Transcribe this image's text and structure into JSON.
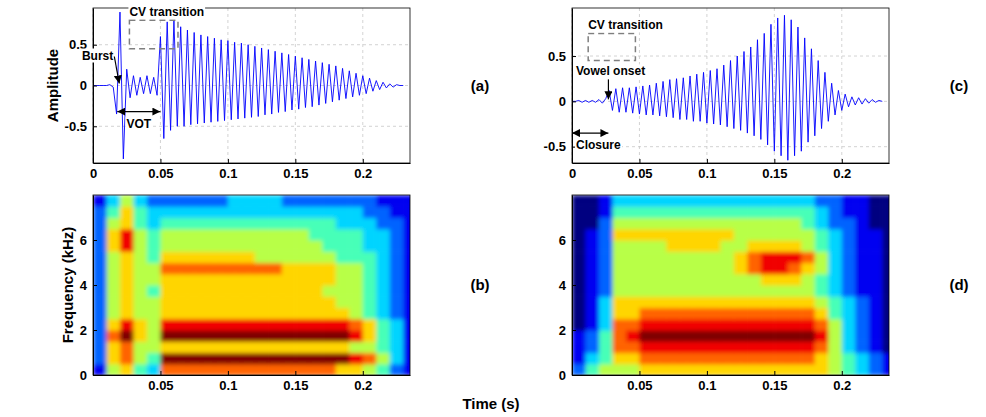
{
  "chart_data": [
    {
      "type": "line",
      "panel_label": "(a)",
      "ylabel": "Amplitude",
      "color": "#0000ff",
      "grid": true,
      "xlim": [
        0,
        0.235
      ],
      "ylim": [
        -0.95,
        0.95
      ],
      "xticks": [
        0,
        0.05,
        0.1,
        0.15,
        0.2
      ],
      "yticks": [
        -0.5,
        0,
        0.5
      ],
      "x": [
        0,
        0.0025,
        0.005,
        0.0075,
        0.01,
        0.0125,
        0.015,
        0.0175,
        0.02,
        0.0225,
        0.025,
        0.0275,
        0.03,
        0.0325,
        0.035,
        0.0375,
        0.04,
        0.0425,
        0.045,
        0.0475,
        0.05,
        0.0525,
        0.055,
        0.0575,
        0.06,
        0.0625,
        0.065,
        0.0675,
        0.07,
        0.0725,
        0.075,
        0.0775,
        0.08,
        0.0825,
        0.085,
        0.0875,
        0.09,
        0.0925,
        0.095,
        0.0975,
        0.1,
        0.1025,
        0.105,
        0.1075,
        0.11,
        0.1125,
        0.115,
        0.1175,
        0.12,
        0.1225,
        0.125,
        0.1275,
        0.13,
        0.1325,
        0.135,
        0.1375,
        0.14,
        0.1425,
        0.145,
        0.1475,
        0.15,
        0.1525,
        0.155,
        0.1575,
        0.16,
        0.1625,
        0.165,
        0.1675,
        0.17,
        0.1725,
        0.175,
        0.1775,
        0.18,
        0.1825,
        0.185,
        0.1875,
        0.19,
        0.1925,
        0.195,
        0.1975,
        0.2,
        0.2025,
        0.205,
        0.2075,
        0.21,
        0.2125,
        0.215,
        0.2175,
        0.22,
        0.2225,
        0.225,
        0.2275,
        0.23
      ],
      "values": [
        0,
        0,
        0,
        0,
        0,
        0.01,
        -0.02,
        -0.35,
        0.9,
        -0.9,
        0.2,
        -0.15,
        0.12,
        -0.12,
        0.1,
        -0.1,
        0.12,
        -0.1,
        0.1,
        -0.12,
        0.6,
        -0.65,
        0.78,
        -0.55,
        0.8,
        -0.5,
        0.72,
        -0.5,
        0.68,
        -0.48,
        0.65,
        -0.47,
        0.62,
        -0.46,
        0.6,
        -0.45,
        0.58,
        -0.44,
        0.56,
        -0.43,
        0.55,
        -0.42,
        0.53,
        -0.41,
        0.52,
        -0.4,
        0.5,
        -0.39,
        0.48,
        -0.38,
        0.46,
        -0.36,
        0.44,
        -0.35,
        0.42,
        -0.33,
        0.4,
        -0.32,
        0.38,
        -0.3,
        0.36,
        -0.29,
        0.34,
        -0.27,
        0.32,
        -0.26,
        0.3,
        -0.24,
        0.28,
        -0.22,
        0.26,
        -0.2,
        0.24,
        -0.18,
        0.21,
        -0.16,
        0.18,
        -0.14,
        0.15,
        -0.12,
        0.12,
        -0.1,
        0.09,
        -0.07,
        0.06,
        -0.05,
        0.04,
        -0.03,
        0.02,
        -0.02,
        0.01,
        0,
        0
      ],
      "annotations": [
        {
          "text": "Burst",
          "x": 0.0195,
          "y": 0
        },
        {
          "text": "CV transition",
          "x": [
            0.027,
            0.063
          ],
          "y": [
            0.45,
            0.8
          ]
        },
        {
          "text": "VOT",
          "x": [
            0.018,
            0.05
          ],
          "y": -0.32
        }
      ]
    },
    {
      "type": "heatmap",
      "panel_label": "(b)",
      "ylabel": "Frequency (kHz)",
      "xlim": [
        0,
        0.235
      ],
      "ylim": [
        0,
        8
      ],
      "xticks": [
        0.05,
        0.1,
        0.15,
        0.2
      ],
      "yticks": [
        0,
        2,
        4,
        6
      ],
      "zlim": [
        0,
        9
      ],
      "x_edges": [
        0,
        0.01,
        0.02,
        0.03,
        0.04,
        0.05,
        0.06,
        0.07,
        0.08,
        0.09,
        0.1,
        0.11,
        0.12,
        0.13,
        0.14,
        0.15,
        0.16,
        0.17,
        0.18,
        0.19,
        0.2,
        0.21,
        0.22,
        0.23,
        0.24
      ],
      "y_edges": [
        0,
        0.5,
        1,
        1.5,
        2,
        2.5,
        3,
        3.5,
        4,
        4.5,
        5,
        5.5,
        6,
        6.5,
        7,
        7.5,
        8
      ],
      "cells": [
        [
          1,
          5,
          6,
          4,
          3,
          7,
          7,
          7,
          7,
          7,
          7,
          7,
          7,
          7,
          7,
          7,
          7,
          7,
          6,
          6,
          5,
          4,
          2,
          1
        ],
        [
          2,
          6,
          7,
          5,
          4,
          9,
          9,
          9,
          9,
          9,
          9,
          9,
          9,
          9,
          9,
          9,
          9,
          9,
          9,
          8,
          7,
          5,
          3,
          1
        ],
        [
          2,
          6,
          7,
          5,
          5,
          6,
          6,
          6,
          6,
          6,
          6,
          6,
          6,
          6,
          6,
          6,
          6,
          6,
          6,
          5,
          5,
          4,
          3,
          1
        ],
        [
          2,
          7,
          9,
          6,
          5,
          9,
          9,
          9,
          9,
          9,
          9,
          9,
          9,
          9,
          9,
          9,
          9,
          9,
          9,
          8,
          6,
          4,
          3,
          1
        ],
        [
          2,
          6,
          8,
          6,
          5,
          8,
          8,
          8,
          8,
          8,
          8,
          8,
          8,
          8,
          8,
          8,
          8,
          8,
          8,
          7,
          6,
          4,
          3,
          1
        ],
        [
          2,
          5,
          6,
          5,
          5,
          6,
          6,
          6,
          6,
          6,
          6,
          6,
          6,
          6,
          6,
          6,
          6,
          6,
          6,
          5,
          4,
          3,
          2,
          1
        ],
        [
          2,
          5,
          6,
          5,
          5,
          6,
          6,
          6,
          6,
          6,
          6,
          6,
          6,
          6,
          6,
          6,
          6,
          6,
          5,
          5,
          4,
          3,
          2,
          1
        ],
        [
          2,
          5,
          6,
          5,
          4,
          6,
          6,
          6,
          6,
          6,
          6,
          6,
          6,
          6,
          6,
          6,
          6,
          5,
          5,
          5,
          4,
          3,
          2,
          1
        ],
        [
          2,
          5,
          6,
          5,
          5,
          6,
          6,
          6,
          6,
          6,
          6,
          6,
          6,
          6,
          6,
          6,
          6,
          6,
          5,
          5,
          4,
          3,
          2,
          1
        ],
        [
          2,
          5,
          6,
          5,
          5,
          7,
          7,
          7,
          7,
          7,
          7,
          7,
          7,
          7,
          6,
          6,
          6,
          6,
          5,
          5,
          4,
          3,
          2,
          1
        ],
        [
          2,
          5,
          6,
          5,
          4,
          6,
          6,
          6,
          6,
          6,
          6,
          6,
          5,
          5,
          5,
          5,
          5,
          5,
          4,
          4,
          4,
          3,
          2,
          1
        ],
        [
          2,
          6,
          8,
          5,
          4,
          5,
          5,
          5,
          5,
          5,
          5,
          5,
          5,
          5,
          5,
          5,
          5,
          4,
          4,
          4,
          3,
          3,
          2,
          1
        ],
        [
          2,
          6,
          8,
          5,
          4,
          5,
          5,
          5,
          5,
          5,
          5,
          5,
          5,
          5,
          5,
          5,
          4,
          4,
          4,
          4,
          3,
          3,
          2,
          1
        ],
        [
          2,
          5,
          6,
          4,
          3,
          4,
          4,
          4,
          4,
          4,
          4,
          4,
          4,
          4,
          4,
          4,
          4,
          4,
          3,
          3,
          3,
          2,
          2,
          1
        ],
        [
          2,
          4,
          6,
          4,
          3,
          3,
          3,
          3,
          3,
          3,
          3,
          3,
          3,
          3,
          3,
          3,
          3,
          3,
          3,
          3,
          2,
          2,
          1,
          1
        ],
        [
          1,
          3,
          5,
          3,
          2,
          2,
          2,
          2,
          2,
          2,
          3,
          3,
          3,
          3,
          2,
          2,
          2,
          2,
          2,
          2,
          2,
          1,
          1,
          1
        ]
      ]
    },
    {
      "type": "line",
      "panel_label": "(c)",
      "color": "#0000ff",
      "grid": true,
      "xlim": [
        0,
        0.235
      ],
      "ylim": [
        -0.68,
        1.03
      ],
      "xticks": [
        0,
        0.05,
        0.1,
        0.15,
        0.2
      ],
      "yticks": [
        -0.5,
        0,
        0.5
      ],
      "x": [
        0,
        0.0025,
        0.005,
        0.0075,
        0.01,
        0.0125,
        0.015,
        0.0175,
        0.02,
        0.0225,
        0.025,
        0.0275,
        0.03,
        0.0325,
        0.035,
        0.0375,
        0.04,
        0.0425,
        0.045,
        0.0475,
        0.05,
        0.0525,
        0.055,
        0.0575,
        0.06,
        0.0625,
        0.065,
        0.0675,
        0.07,
        0.0725,
        0.075,
        0.0775,
        0.08,
        0.0825,
        0.085,
        0.0875,
        0.09,
        0.0925,
        0.095,
        0.0975,
        0.1,
        0.1025,
        0.105,
        0.1075,
        0.11,
        0.1125,
        0.115,
        0.1175,
        0.12,
        0.1225,
        0.125,
        0.1275,
        0.13,
        0.1325,
        0.135,
        0.1375,
        0.14,
        0.1425,
        0.145,
        0.1475,
        0.15,
        0.1525,
        0.155,
        0.1575,
        0.16,
        0.1625,
        0.165,
        0.1675,
        0.17,
        0.1725,
        0.175,
        0.1775,
        0.18,
        0.1825,
        0.185,
        0.1875,
        0.19,
        0.1925,
        0.195,
        0.1975,
        0.2,
        0.2025,
        0.205,
        0.2075,
        0.21,
        0.2125,
        0.215,
        0.2175,
        0.22,
        0.2225,
        0.225,
        0.2275,
        0.23
      ],
      "values": [
        0,
        0,
        0.01,
        -0.01,
        0.01,
        -0.01,
        0.01,
        -0.01,
        0.02,
        -0.02,
        0.03,
        0.12,
        -0.1,
        0.14,
        -0.12,
        0.15,
        -0.12,
        0.15,
        -0.13,
        0.16,
        -0.14,
        0.17,
        -0.15,
        0.18,
        -0.15,
        0.2,
        -0.16,
        0.22,
        -0.17,
        0.24,
        -0.18,
        0.25,
        -0.2,
        0.26,
        -0.2,
        0.28,
        -0.22,
        0.3,
        -0.22,
        0.32,
        -0.24,
        0.34,
        -0.25,
        0.36,
        -0.26,
        0.4,
        -0.28,
        0.45,
        -0.3,
        0.5,
        -0.32,
        0.55,
        -0.35,
        0.6,
        -0.38,
        0.68,
        -0.42,
        0.75,
        -0.48,
        0.85,
        -0.55,
        0.92,
        -0.6,
        0.95,
        -0.65,
        0.9,
        -0.6,
        0.82,
        -0.55,
        0.7,
        -0.45,
        0.58,
        -0.38,
        0.45,
        -0.3,
        0.32,
        -0.22,
        0.2,
        -0.15,
        0.12,
        -0.1,
        0.08,
        -0.06,
        0.05,
        -0.04,
        0.04,
        -0.03,
        0.03,
        -0.02,
        0.02,
        -0.01,
        0.01,
        0
      ],
      "annotations": [
        {
          "text": "CV transition",
          "x": [
            0.012,
            0.047
          ],
          "y": [
            0.45,
            0.75
          ]
        },
        {
          "text": "Vowel onset",
          "x": 0.027,
          "y": 0
        },
        {
          "text": "Closure",
          "x": [
            0,
            0.027
          ],
          "y": -0.35
        }
      ]
    },
    {
      "type": "heatmap",
      "panel_label": "(d)",
      "xlim": [
        0,
        0.235
      ],
      "ylim": [
        0,
        8
      ],
      "xticks": [
        0.05,
        0.1,
        0.15,
        0.2
      ],
      "yticks": [
        0,
        2,
        4,
        6
      ],
      "zlim": [
        0,
        9
      ],
      "x_edges": [
        0,
        0.01,
        0.02,
        0.03,
        0.04,
        0.05,
        0.06,
        0.07,
        0.08,
        0.09,
        0.1,
        0.11,
        0.12,
        0.13,
        0.14,
        0.15,
        0.16,
        0.17,
        0.18,
        0.19,
        0.2,
        0.21,
        0.22,
        0.23,
        0.24
      ],
      "y_edges": [
        0,
        0.5,
        1,
        1.5,
        2,
        2.5,
        3,
        3.5,
        4,
        4.5,
        5,
        5.5,
        6,
        6.5,
        7,
        7.5,
        8
      ],
      "cells": [
        [
          2,
          4,
          5,
          5,
          5,
          6,
          6,
          6,
          6,
          6,
          6,
          6,
          6,
          6,
          6,
          6,
          6,
          6,
          6,
          5,
          4,
          3,
          2,
          1
        ],
        [
          1,
          3,
          4,
          6,
          6,
          7,
          7,
          7,
          7,
          7,
          7,
          7,
          7,
          7,
          7,
          7,
          7,
          7,
          6,
          5,
          4,
          3,
          2,
          1
        ],
        [
          1,
          2,
          4,
          7,
          7,
          8,
          8,
          8,
          8,
          8,
          8,
          8,
          8,
          8,
          8,
          8,
          8,
          8,
          7,
          5,
          3,
          2,
          1,
          0
        ],
        [
          1,
          2,
          4,
          7,
          8,
          9,
          9,
          9,
          9,
          9,
          9,
          9,
          9,
          9,
          9,
          9,
          9,
          9,
          8,
          5,
          3,
          2,
          1,
          0
        ],
        [
          0,
          1,
          3,
          7,
          7,
          8,
          8,
          8,
          8,
          8,
          8,
          8,
          8,
          8,
          8,
          8,
          8,
          8,
          7,
          5,
          3,
          2,
          1,
          0
        ],
        [
          0,
          1,
          3,
          6,
          6,
          7,
          7,
          7,
          7,
          7,
          7,
          7,
          7,
          7,
          7,
          7,
          7,
          7,
          6,
          4,
          3,
          2,
          1,
          0
        ],
        [
          0,
          1,
          3,
          6,
          6,
          6,
          6,
          6,
          6,
          6,
          6,
          6,
          6,
          6,
          6,
          6,
          6,
          6,
          5,
          4,
          3,
          2,
          1,
          0
        ],
        [
          0,
          1,
          2,
          5,
          5,
          5,
          5,
          5,
          5,
          5,
          5,
          5,
          5,
          5,
          5,
          5,
          5,
          5,
          4,
          3,
          2,
          1,
          1,
          0
        ],
        [
          0,
          1,
          2,
          5,
          5,
          5,
          5,
          5,
          5,
          5,
          5,
          5,
          5,
          5,
          6,
          6,
          6,
          5,
          4,
          3,
          2,
          1,
          1,
          0
        ],
        [
          0,
          1,
          2,
          5,
          5,
          5,
          5,
          5,
          5,
          5,
          5,
          5,
          6,
          7,
          8,
          8,
          7,
          6,
          5,
          3,
          2,
          1,
          1,
          0
        ],
        [
          0,
          1,
          2,
          5,
          5,
          5,
          5,
          5,
          5,
          5,
          5,
          5,
          6,
          7,
          8,
          8,
          8,
          7,
          5,
          3,
          2,
          1,
          1,
          0
        ],
        [
          0,
          1,
          2,
          5,
          5,
          5,
          5,
          6,
          6,
          6,
          6,
          5,
          5,
          6,
          6,
          6,
          6,
          5,
          4,
          3,
          2,
          1,
          1,
          0
        ],
        [
          0,
          1,
          2,
          6,
          6,
          6,
          6,
          6,
          6,
          6,
          6,
          6,
          5,
          5,
          5,
          5,
          5,
          5,
          4,
          3,
          2,
          1,
          1,
          0
        ],
        [
          0,
          0,
          2,
          5,
          5,
          5,
          5,
          5,
          5,
          5,
          5,
          5,
          5,
          5,
          5,
          5,
          5,
          4,
          3,
          2,
          2,
          1,
          0,
          0
        ],
        [
          0,
          0,
          1,
          4,
          4,
          4,
          4,
          4,
          4,
          4,
          4,
          4,
          4,
          4,
          4,
          4,
          4,
          4,
          3,
          2,
          1,
          1,
          0,
          0
        ],
        [
          0,
          0,
          1,
          3,
          3,
          3,
          3,
          3,
          3,
          3,
          3,
          3,
          3,
          3,
          3,
          3,
          3,
          3,
          2,
          2,
          1,
          1,
          0,
          0
        ]
      ]
    }
  ],
  "xlabel": "Time (s)"
}
